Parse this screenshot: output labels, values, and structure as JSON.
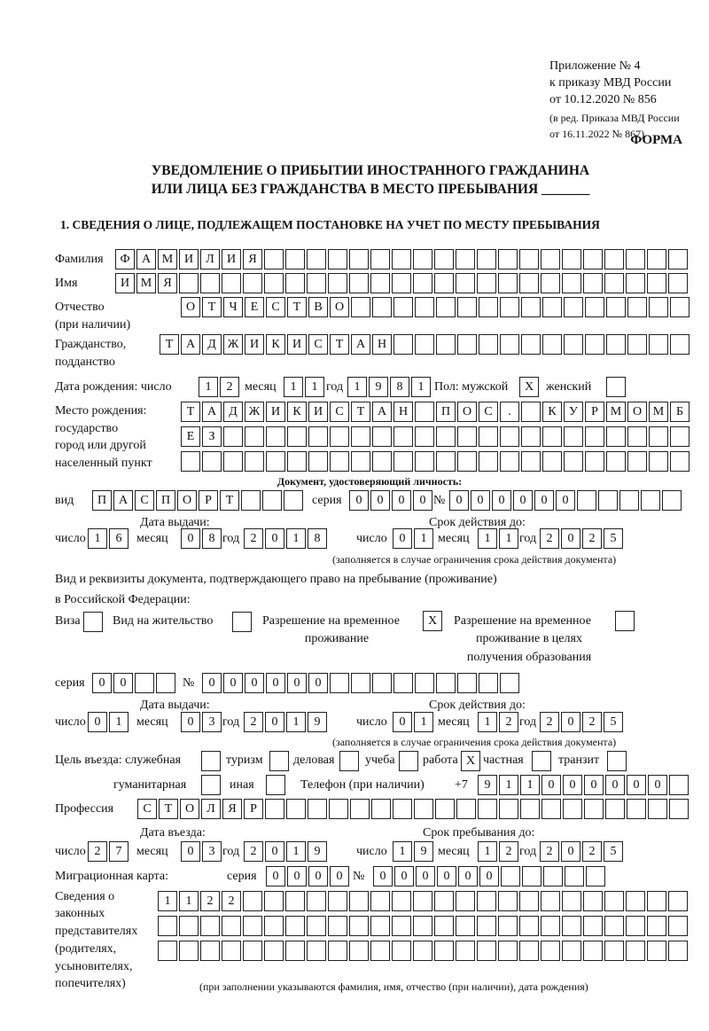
{
  "header": {
    "appendix": "Приложение № 4",
    "order": "к приказу МВД России",
    "order_date": "от 10.12.2020 № 856",
    "edition1": "(в ред. Приказа МВД России",
    "edition2": "от 16.11.2022 № 867)",
    "form": "ФОРМА",
    "title1": "УВЕДОМЛЕНИЕ О ПРИБЫТИИ ИНОСТРАННОГО ГРАЖДАНИНА",
    "title2": "ИЛИ ЛИЦА БЕЗ ГРАЖДАНСТВА В МЕСТО ПРЕБЫВАНИЯ _______"
  },
  "section1": {
    "heading": "1. СВЕДЕНИЯ О ЛИЦЕ, ПОДЛЕЖАЩЕМ ПОСТАНОВКЕ НА УЧЕТ ПО МЕСТУ ПРЕБЫВАНИЯ",
    "labels": {
      "surname": "Фамилия",
      "name": "Имя",
      "patronymic": "Отчество",
      "patronymic2": "(при наличии)",
      "citizenship": "Гражданство,",
      "citizenship2": "подданство",
      "birth_date": "Дата рождения:   число",
      "month": "месяц",
      "year": "год",
      "sex": "Пол: мужской",
      "female": "женский",
      "birth_place1": "Место рождения:",
      "birth_place2": "государство",
      "birth_place3": "город или другой",
      "birth_place4": "населенный пункт",
      "id_doc": "Документ, удостоверяющий личность:",
      "kind": "вид",
      "series": "серия",
      "number": "№",
      "issue_date": "Дата выдачи:",
      "valid_until": "Срок действия до:",
      "day": "число",
      "validity_note": "(заполняется в случае ограничения срока действия документа)",
      "right_doc1": "Вид и реквизиты документа, подтверждающего право на пребывание (проживание)",
      "right_doc2": "в Российской Федерации:",
      "visa": "Виза",
      "residence": "Вид на жительство",
      "trp1": "Разрешение на временное",
      "trp2": "проживание",
      "trp_edu1": "Разрешение на временное",
      "trp_edu2": "проживание в целях",
      "trp_edu3": "получения образования",
      "purpose": "Цель въезда: служебная",
      "tourism": "туризм",
      "business": "деловая",
      "study": "учеба",
      "work": "работа",
      "private": "частная",
      "transit": "транзит",
      "humanitarian": "гуманитарная",
      "other": "иная",
      "phone": "Телефон (при наличии)",
      "phone_prefix": "+7",
      "profession": "Профессия",
      "entry_date": "Дата въезда:",
      "stay_until": "Срок пребывания до:",
      "migration_card": "Миграционная карта:",
      "reps1": "Сведения о",
      "reps2": "законных",
      "reps3": "представителях",
      "reps4": "(родителях,",
      "reps5": "усыновителях,",
      "reps6": "попечителях)",
      "reps_note": "(при заполнении указываются фамилия, имя, отчество (при наличии), дата рождения)"
    },
    "values": {
      "surname": "ФАМИЛИЯ",
      "name": "ИМЯ",
      "patronymic": "ОТЧЕСТВО",
      "citizenship": "ТАДЖИКИСТАН",
      "birth_day": "12",
      "birth_month": "11",
      "birth_year": "1981",
      "male": "X",
      "female": "",
      "birth_place1": "ТАДЖИКИСТАН ПОС. КУРМОМБ",
      "birth_place2": "ЕЗ",
      "birth_place3": "",
      "id_kind": "ПАСПОРТ",
      "id_series": "0000",
      "id_number": "000000",
      "id_issue_day": "16",
      "id_issue_month": "08",
      "id_issue_year": "2018",
      "id_valid_day": "01",
      "id_valid_month": "11",
      "id_valid_year": "2025",
      "visa": "",
      "residence": "",
      "trp": "X",
      "trp_edu": "",
      "rd_series": "00",
      "rd_number": "000000",
      "rd_issue_day": "01",
      "rd_issue_month": "03",
      "rd_issue_year": "2019",
      "rd_valid_day": "01",
      "rd_valid_month": "12",
      "rd_valid_year": "2025",
      "p_official": "",
      "p_tourism": "",
      "p_business": "",
      "p_study": "",
      "p_work": "X",
      "p_private": "",
      "p_transit": "",
      "p_humanitarian": "",
      "p_other": "",
      "phone": "911000000",
      "profession": "СТОЛЯР",
      "entry_day": "27",
      "entry_month": "03",
      "entry_year": "2019",
      "stay_day": "19",
      "stay_month": "12",
      "stay_year": "2025",
      "mc_series": "0000",
      "mc_number": "000000",
      "reps1": "1122",
      "reps2": "",
      "reps3": ""
    }
  }
}
